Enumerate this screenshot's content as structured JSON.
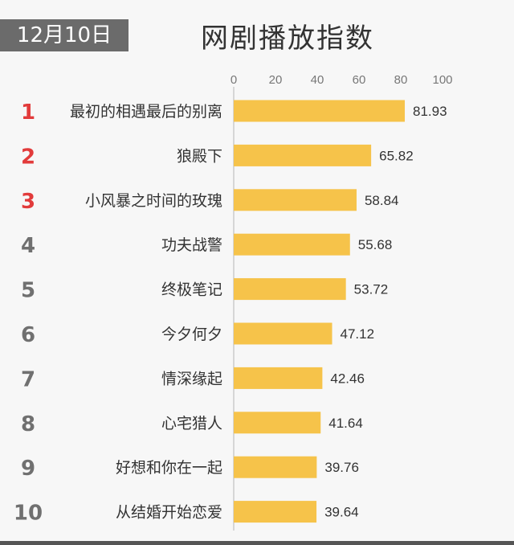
{
  "header": {
    "date": "12月10日",
    "title": "网剧播放指数"
  },
  "colors": {
    "bar": "#f6c34a",
    "rank_top": "#e23b3b",
    "rank_other": "#707070",
    "label": "#333333",
    "axis": "#cccccc",
    "tick": "#777777"
  },
  "chart_data": {
    "type": "bar",
    "orientation": "horizontal",
    "title": "网剧播放指数",
    "xlim": [
      0,
      100
    ],
    "ticks": [
      0,
      20,
      40,
      60,
      80,
      100
    ],
    "ranks": [
      "1",
      "2",
      "3",
      "4",
      "5",
      "6",
      "7",
      "8",
      "9",
      "10"
    ],
    "categories": [
      "最初的相遇最后的别离",
      "狼殿下",
      "小风暴之时间的玫瑰",
      "功夫战警",
      "终极笔记",
      "今夕何夕",
      "情深缘起",
      "心宅猎人",
      "好想和你在一起",
      "从结婚开始恋爱"
    ],
    "values": [
      81.93,
      65.82,
      58.84,
      55.68,
      53.72,
      47.12,
      42.46,
      41.64,
      39.76,
      39.64
    ],
    "value_labels": [
      "81.93",
      "65.82",
      "58.84",
      "55.68",
      "53.72",
      "47.12",
      "42.46",
      "41.64",
      "39.76",
      "39.64"
    ],
    "grid": false
  }
}
